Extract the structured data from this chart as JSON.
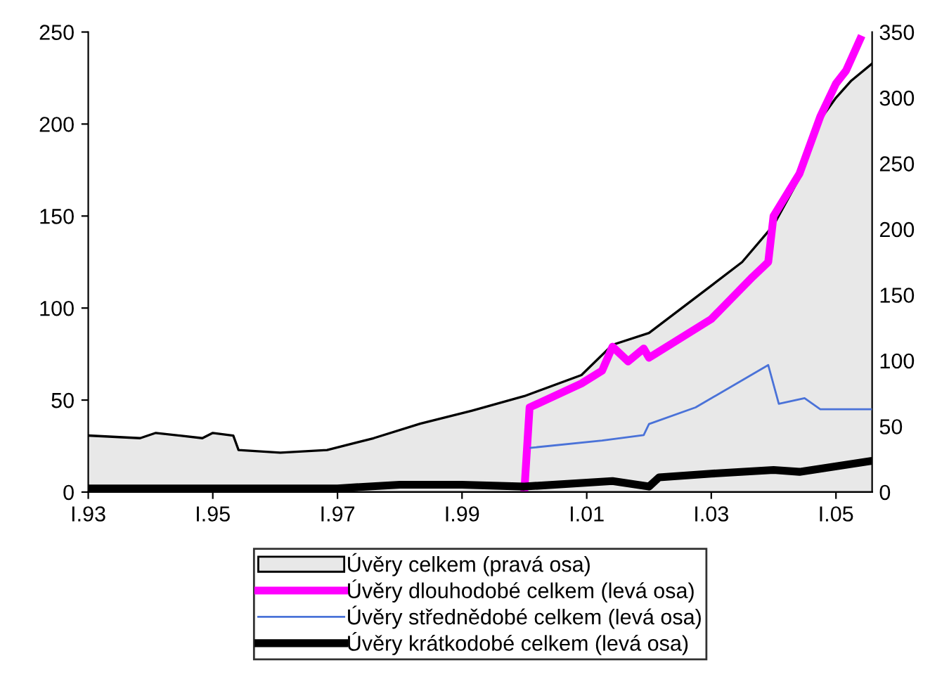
{
  "chart_data": {
    "type": "line",
    "xlim": [
      "1993-01",
      "2005-08"
    ],
    "xticks": [
      {
        "value": "1993-01",
        "label": "I.93"
      },
      {
        "value": "1995-01",
        "label": "I.95"
      },
      {
        "value": "1997-01",
        "label": "I.97"
      },
      {
        "value": "1999-01",
        "label": "I.99"
      },
      {
        "value": "2001-01",
        "label": "I.01"
      },
      {
        "value": "2003-01",
        "label": "I.03"
      },
      {
        "value": "2005-01",
        "label": "I.05"
      }
    ],
    "ylim": [
      0,
      250
    ],
    "yticks": [
      0,
      50,
      100,
      150,
      200,
      250
    ],
    "y2lim": [
      0,
      350
    ],
    "y2ticks": [
      0,
      50,
      100,
      150,
      200,
      250,
      300,
      350
    ],
    "grid": false,
    "legend": "bottom",
    "series": [
      {
        "name": "Úvěry celkem (pravá osa)",
        "type": "area",
        "axis": "y2",
        "color": "#e8e8e8",
        "x": [
          "1993-01",
          "1993-11",
          "1994-02",
          "1994-11",
          "1995-01",
          "1995-05",
          "1995-06",
          "1996-02",
          "1996-11",
          "1997-08",
          "1998-05",
          "1999-03",
          "2000-01",
          "2000-12",
          "2001-06",
          "2002-01",
          "2003-01",
          "2003-07",
          "2004-01",
          "2004-06",
          "2004-09",
          "2005-01",
          "2005-04",
          "2005-08"
        ],
        "values": [
          43,
          41,
          45,
          41,
          45,
          43,
          32,
          30,
          32,
          41,
          52,
          62,
          73,
          89,
          112,
          121,
          157,
          175,
          203,
          239,
          278,
          300,
          313,
          326
        ]
      },
      {
        "name": "Úvěry dlouhodobé celkem (levá osa)",
        "color": "#ff00ff",
        "x": [
          "2000-01",
          "2000-02",
          "2000-12",
          "2001-04",
          "2001-06",
          "2001-09",
          "2001-12",
          "2002-01",
          "2003-01",
          "2003-09",
          "2003-12",
          "2004-01",
          "2004-06",
          "2004-10",
          "2005-01",
          "2005-03",
          "2005-06"
        ],
        "values": [
          0,
          46,
          59,
          66,
          79,
          71,
          78,
          73,
          94,
          117,
          125,
          150,
          173,
          204,
          222,
          229,
          248
        ]
      },
      {
        "name": "Úvěry střednědobé celkem (levá osa)",
        "color": "#4a72d8",
        "x": [
          "2000-02",
          "2001-04",
          "2001-12",
          "2002-01",
          "2002-10",
          "2003-12",
          "2004-02",
          "2004-07",
          "2004-10",
          "2005-08"
        ],
        "values": [
          24,
          28,
          31,
          37,
          46,
          69,
          48,
          51,
          45,
          45
        ]
      },
      {
        "name": "Úvěry krátkodobé celkem (levá osa)",
        "color": "#000000",
        "x": [
          "1993-01",
          "1997-01",
          "1998-01",
          "1999-01",
          "2000-01",
          "2001-06",
          "2002-01",
          "2002-03",
          "2003-01",
          "2004-01",
          "2004-06",
          "2005-08"
        ],
        "values": [
          2,
          2,
          4,
          4,
          3,
          6,
          3,
          8,
          10,
          12,
          11,
          17
        ]
      }
    ]
  }
}
